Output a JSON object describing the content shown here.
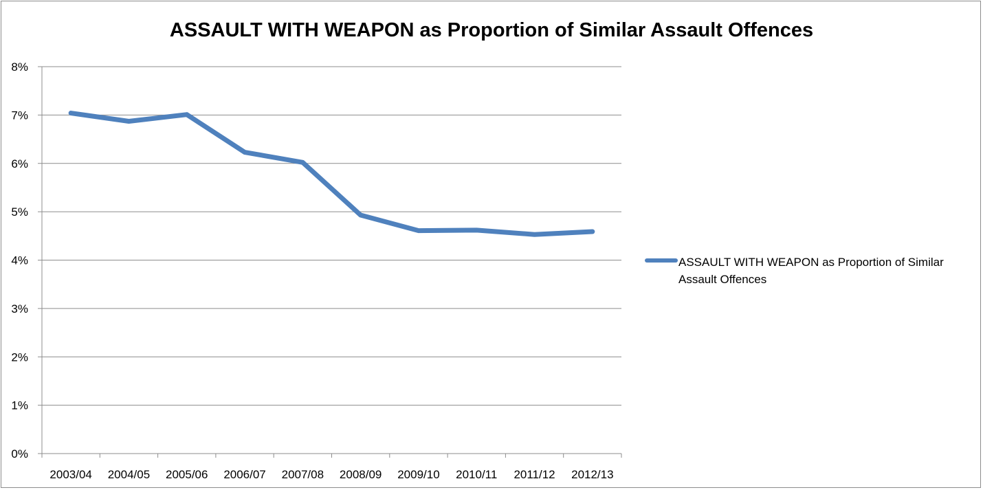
{
  "chart_data": {
    "type": "line",
    "title": "ASSAULT WITH WEAPON as Proportion of Similar Assault Offences",
    "categories": [
      "2003/04",
      "2004/05",
      "2005/06",
      "2006/07",
      "2007/08",
      "2008/09",
      "2009/10",
      "2010/11",
      "2011/12",
      "2012/13"
    ],
    "series": [
      {
        "name": "ASSAULT WITH WEAPON as Proportion of Similar Assault Offences",
        "color": "#4f81bd",
        "values": [
          7.04,
          6.87,
          7.01,
          6.23,
          6.02,
          4.93,
          4.61,
          4.62,
          4.53,
          4.59
        ]
      }
    ],
    "yticks": [
      "0%",
      "1%",
      "2%",
      "3%",
      "4%",
      "5%",
      "6%",
      "7%",
      "8%"
    ],
    "ylim": [
      0,
      8
    ],
    "xlabel": "",
    "ylabel": "",
    "grid": true,
    "legend_position": "right"
  }
}
